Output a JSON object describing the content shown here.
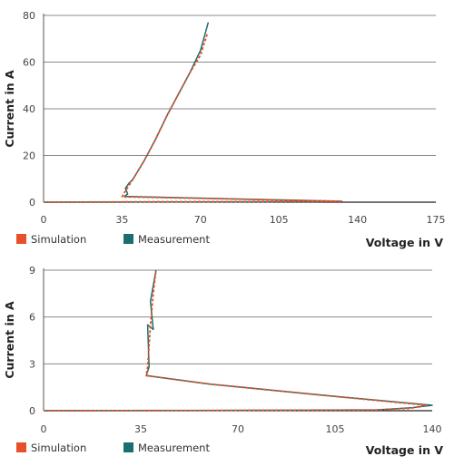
{
  "colors": {
    "simulation": "#e8502a",
    "measurement": "#1b6e6e",
    "grid": "#8a8a8a",
    "text": "#333333"
  },
  "chart_data": [
    {
      "type": "line",
      "xlabel": "Voltage in V",
      "ylabel": "Current in A",
      "xlim": [
        0,
        175
      ],
      "ylim": [
        0,
        80
      ],
      "xticks": [
        0,
        35,
        70,
        105,
        140,
        175
      ],
      "yticks": [
        0,
        20,
        40,
        60,
        80
      ],
      "grid": "horizontal",
      "legend": "bottom-left",
      "series": [
        {
          "name": "Simulation",
          "style": "dashed",
          "x": [
            0,
            60,
            120,
            133,
            90,
            35,
            36,
            40,
            45,
            50,
            55,
            60,
            65,
            70,
            73
          ],
          "y": [
            0,
            0.2,
            0.3,
            0.4,
            1.3,
            2.3,
            4,
            10,
            18,
            27,
            37,
            46,
            55,
            63,
            72
          ]
        },
        {
          "name": "Measurement",
          "style": "solid",
          "x": [
            0,
            60,
            120,
            133,
            90,
            36,
            37.5,
            36.5,
            38,
            40,
            45,
            50,
            55,
            60,
            65,
            70,
            73.5
          ],
          "y": [
            0,
            0.1,
            0.2,
            0.4,
            1.3,
            2.5,
            3.5,
            6,
            8,
            10,
            18,
            27,
            37,
            46,
            55,
            65,
            77
          ]
        }
      ]
    },
    {
      "type": "line",
      "xlabel": "Voltage in V",
      "ylabel": "Current in A",
      "xlim": [
        0,
        140
      ],
      "ylim": [
        0,
        9
      ],
      "xticks": [
        0,
        35,
        70,
        105,
        140
      ],
      "yticks": [
        0,
        3,
        6,
        9
      ],
      "grid": "horizontal",
      "legend": "bottom-left",
      "series": [
        {
          "name": "Simulation",
          "style": "dashed",
          "x": [
            0,
            60,
            120,
            132,
            138,
            100,
            60,
            37,
            37.5,
            38.5,
            39.5,
            40.5
          ],
          "y": [
            0,
            0.02,
            0.05,
            0.15,
            0.35,
            1.0,
            1.7,
            2.25,
            2.8,
            5.5,
            7.5,
            9.0
          ]
        },
        {
          "name": "Measurement",
          "style": "solid",
          "x": [
            0,
            60,
            120,
            133,
            140,
            100,
            60,
            37,
            38,
            37.5,
            39.5,
            38.5,
            40.5
          ],
          "y": [
            0,
            0.02,
            0.05,
            0.2,
            0.35,
            1.0,
            1.7,
            2.25,
            2.8,
            5.5,
            5.2,
            7.0,
            9.0
          ]
        }
      ]
    }
  ]
}
